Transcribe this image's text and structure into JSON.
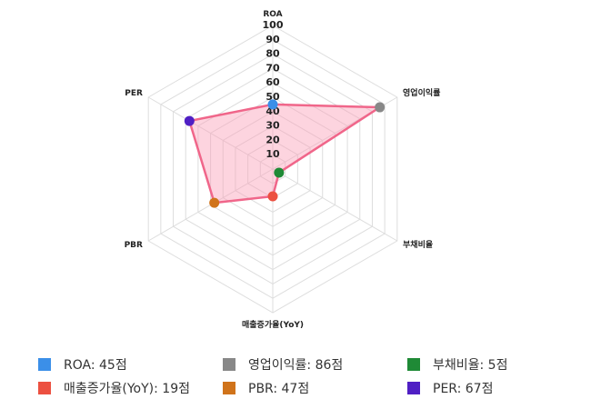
{
  "chart_data": {
    "type": "radar",
    "categories": [
      "ROA",
      "영업이익률",
      "부채비율",
      "매출증가율(YoY)",
      "PBR",
      "PER"
    ],
    "values": [
      45,
      86,
      5,
      19,
      47,
      67
    ],
    "value_labels": [
      "ROA: 45점",
      "영업이익률: 86점",
      "부채비율: 5점",
      "매출증가율(YoY): 19점",
      "PBR: 47점",
      "PER: 67점"
    ],
    "point_colors": [
      "#3b8fe8",
      "#888888",
      "#1f8a36",
      "#ec5040",
      "#d0731a",
      "#4f1fc4"
    ],
    "line_color": "#f0668a",
    "fill_color": "rgba(250,160,185,0.45)",
    "rlim": [
      0,
      100
    ],
    "rticks": [
      10,
      20,
      30,
      40,
      50,
      60,
      70,
      80,
      90,
      100
    ],
    "grid": true
  }
}
